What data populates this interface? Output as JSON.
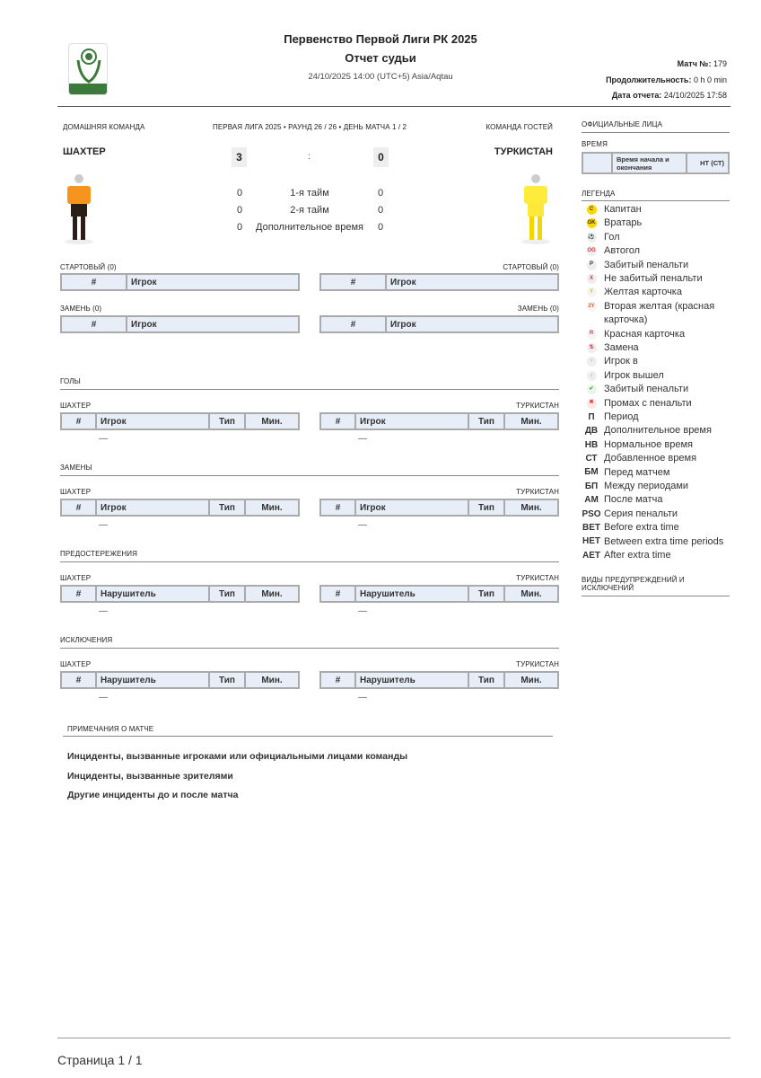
{
  "header": {
    "title": "Первенство Первой Лиги РК 2025",
    "subtitle": "Отчет судьи",
    "datetime": "24/10/2025 14:00 (UTC+5) Asia/Aqtau",
    "match_no_label": "Матч №:",
    "match_no": "179",
    "duration_label": "Продолжительность:",
    "duration": "0 h 0 min",
    "report_date_label": "Дата отчета:",
    "report_date": "24/10/2025 17:58",
    "logo_text": "KAZAKHSTAN БIРIНШI ЛИГАСЫ"
  },
  "match": {
    "home_label": "ДОМАШНЯЯ КОМАНДА",
    "away_label": "КОМАНДА ГОСТЕЙ",
    "round_info": "ПЕРВАЯ ЛИГА 2025 • РАУНД 26 / 26 • ДЕНЬ МАТЧА 1 / 2",
    "home_team": "ШАХТЕР",
    "away_team": "ТУРКИСТАН",
    "home_score": "3",
    "separator": ":",
    "away_score": "0",
    "periods": [
      {
        "label": "1-я тайм",
        "home": "0",
        "away": "0"
      },
      {
        "label": "2-я тайм",
        "home": "0",
        "away": "0"
      },
      {
        "label": "Дополнительное время",
        "home": "0",
        "away": "0"
      }
    ],
    "home_kit_colors": {
      "shirt": "#f7941d",
      "shorts": "#2b1d17",
      "socks": "#2b1d17"
    },
    "away_kit_colors": {
      "shirt": "#ffeb3b",
      "shorts": "#ffeb3b",
      "socks": "#ffeb3b"
    }
  },
  "lineups": {
    "starting_label": "СТАРТОВЫЙ (0)",
    "subs_label": "ЗАМЕНЬ (0)",
    "col_num": "#",
    "col_player": "Игрок"
  },
  "sections": [
    {
      "title": "ГОЛЫ",
      "home": "ШАХТЕР",
      "away": "ТУРКИСТАН",
      "cols": [
        "#",
        "Игрок",
        "Тип",
        "Мин."
      ],
      "home_empty": "—",
      "away_empty": "—"
    },
    {
      "title": "ЗАМЕНЫ",
      "home": "ШАХТЕР",
      "away": "ТУРКИСТАН",
      "cols": [
        "#",
        "Игрок",
        "Тип",
        "Мин."
      ],
      "home_empty": "—",
      "away_empty": "—"
    },
    {
      "title": "ПРЕДОСТЕРЕЖЕНИЯ",
      "home": "ШАХТЕР",
      "away": "ТУРКИСТАН",
      "cols": [
        "#",
        "Нарушитель",
        "Тип",
        "Мин."
      ],
      "home_empty": "—",
      "away_empty": "—"
    },
    {
      "title": "ИСКЛЮЧЕНИЯ",
      "home": "ШАХТЕР",
      "away": "ТУРКИСТАН",
      "cols": [
        "#",
        "Нарушитель",
        "Тип",
        "Мин."
      ],
      "home_empty": "—",
      "away_empty": "—"
    }
  ],
  "notes": {
    "title": "ПРИМЕЧАНИЯ О МАТЧЕ",
    "items": [
      "Инциденты, вызванные игроками или официальными лицами команды",
      "Инциденты, вызванные зрителями",
      "Другие инциденты до и после матча"
    ]
  },
  "sidebar": {
    "officials_title": "ОФИЦИАЛЬНЫЕ ЛИЦА",
    "time_title": "ВРЕМЯ",
    "time_col1": "Время начала и окончания",
    "time_col2": "НТ (СТ)",
    "legend_title": "ЛЕГЕНДА",
    "legend": [
      {
        "icon": "captain-icon",
        "sym": "C",
        "label": "Капитан"
      },
      {
        "icon": "goalkeeper-icon",
        "sym": "GK",
        "label": "Вратарь"
      },
      {
        "icon": "goal-icon",
        "sym": "⚽",
        "label": "Гол"
      },
      {
        "icon": "own-goal-icon",
        "sym": "OG",
        "label": "Автогол"
      },
      {
        "icon": "penalty-scored-icon",
        "sym": "P",
        "label": "Забитый пенальти"
      },
      {
        "icon": "penalty-missed-icon",
        "sym": "X",
        "label": "Не забитый пенальти"
      },
      {
        "icon": "yellow-card-icon",
        "sym": "Y",
        "label": "Желтая карточка"
      },
      {
        "icon": "second-yellow-icon",
        "sym": "2Y",
        "label": "Вторая желтая (красная карточка)"
      },
      {
        "icon": "red-card-icon",
        "sym": "R",
        "label": "Красная карточка"
      },
      {
        "icon": "substitution-icon",
        "sym": "⇅",
        "label": "Замена"
      },
      {
        "icon": "player-in-icon",
        "sym": "↑",
        "label": "Игрок в"
      },
      {
        "icon": "player-out-icon",
        "sym": "↓",
        "label": "Игрок вышел"
      },
      {
        "icon": "check-icon",
        "sym": "✔",
        "label": "Забитый пенальти"
      },
      {
        "icon": "cross-icon",
        "sym": "✖",
        "label": "Промах с пенальти"
      },
      {
        "icon": "text",
        "sym": "П",
        "label": "Период"
      },
      {
        "icon": "text",
        "sym": "ДВ",
        "label": "Дополнительное время"
      },
      {
        "icon": "text",
        "sym": "НВ",
        "label": "Нормальное время"
      },
      {
        "icon": "text",
        "sym": "СТ",
        "label": "Добавленное время"
      },
      {
        "icon": "text",
        "sym": "БМ",
        "label": "Перед матчем"
      },
      {
        "icon": "text",
        "sym": "БП",
        "label": "Между периодами"
      },
      {
        "icon": "text",
        "sym": "АМ",
        "label": "После матча"
      },
      {
        "icon": "text",
        "sym": "PSO",
        "label": "Серия пенальти"
      },
      {
        "icon": "text",
        "sym": "BET",
        "label": "Before extra time"
      },
      {
        "icon": "text",
        "sym": "HET",
        "label": "Between extra time periods"
      },
      {
        "icon": "text",
        "sym": "AET",
        "label": "After extra time"
      }
    ],
    "cautions_title": "ВИДЫ ПРЕДУПРЕЖДЕНИЙ И ИСКЛЮЧЕНИЙ"
  },
  "footer": {
    "page": "Страница 1 / 1"
  }
}
